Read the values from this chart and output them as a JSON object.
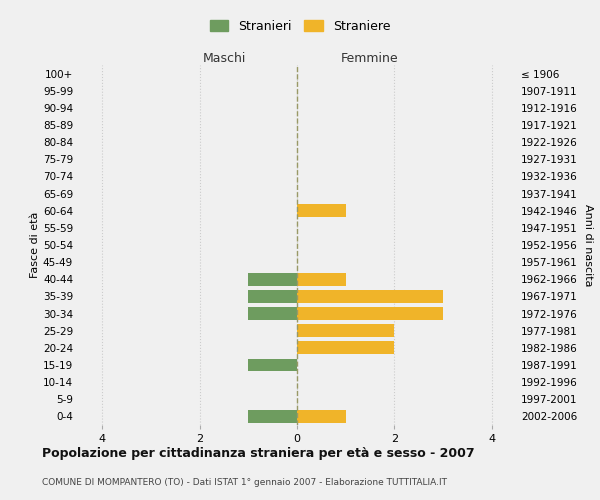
{
  "age_groups": [
    "100+",
    "95-99",
    "90-94",
    "85-89",
    "80-84",
    "75-79",
    "70-74",
    "65-69",
    "60-64",
    "55-59",
    "50-54",
    "45-49",
    "40-44",
    "35-39",
    "30-34",
    "25-29",
    "20-24",
    "15-19",
    "10-14",
    "5-9",
    "0-4"
  ],
  "birth_years": [
    "≤ 1906",
    "1907-1911",
    "1912-1916",
    "1917-1921",
    "1922-1926",
    "1927-1931",
    "1932-1936",
    "1937-1941",
    "1942-1946",
    "1947-1951",
    "1952-1956",
    "1957-1961",
    "1962-1966",
    "1967-1971",
    "1972-1976",
    "1977-1981",
    "1982-1986",
    "1987-1991",
    "1992-1996",
    "1997-2001",
    "2002-2006"
  ],
  "males": [
    0,
    0,
    0,
    0,
    0,
    0,
    0,
    0,
    0,
    0,
    0,
    0,
    1,
    1,
    1,
    0,
    0,
    1,
    0,
    0,
    1
  ],
  "females": [
    0,
    0,
    0,
    0,
    0,
    0,
    0,
    0,
    1,
    0,
    0,
    0,
    1,
    3,
    3,
    2,
    2,
    0,
    0,
    0,
    1
  ],
  "male_color": "#6e9c5f",
  "female_color": "#f0b429",
  "background_color": "#f0f0f0",
  "grid_color": "#cccccc",
  "title": "Popolazione per cittadinanza straniera per età e sesso - 2007",
  "subtitle": "COMUNE DI MOMPANTERO (TO) - Dati ISTAT 1° gennaio 2007 - Elaborazione TUTTITALIA.IT",
  "legend_stranieri": "Stranieri",
  "legend_straniere": "Straniere",
  "maschi_label": "Maschi",
  "femmine_label": "Femmine",
  "fasce_eta_label": "Fasce di età",
  "anni_nascita_label": "Anni di nascita",
  "xlim": 4.5,
  "xticks": [
    -4,
    -2,
    0,
    2,
    4
  ],
  "xticklabels": [
    "4",
    "2",
    "0",
    "2",
    "4"
  ]
}
